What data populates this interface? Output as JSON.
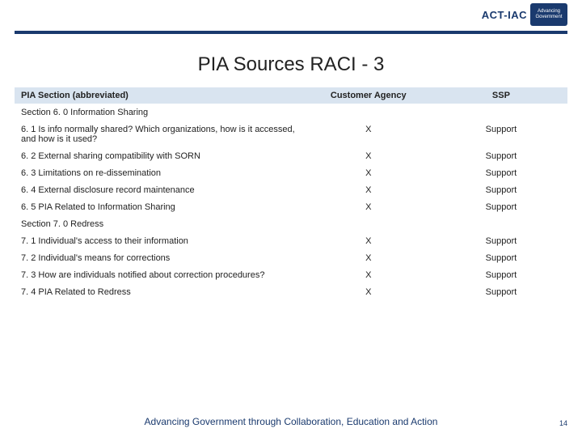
{
  "brand": {
    "name": "ACT-IAC",
    "badge_text": "Advancing Government"
  },
  "title": "PIA Sources RACI - 3",
  "table": {
    "headers": {
      "section": "PIA Section (abbreviated)",
      "customer": "Customer Agency",
      "ssp": "SSP"
    },
    "rows": [
      {
        "type": "section",
        "label": "Section 6. 0 Information Sharing"
      },
      {
        "type": "data",
        "label": "6. 1 Is info normally shared? Which organizations, how is it accessed, and how is it used?",
        "customer": "X",
        "ssp": "Support"
      },
      {
        "type": "data",
        "label": "6. 2 External sharing compatibility with SORN",
        "customer": "X",
        "ssp": "Support"
      },
      {
        "type": "data",
        "label": "6. 3 Limitations on re-dissemination",
        "customer": "X",
        "ssp": "Support"
      },
      {
        "type": "data",
        "label": "6. 4 External disclosure record maintenance",
        "customer": "X",
        "ssp": "Support"
      },
      {
        "type": "data",
        "label": "6. 5 PIA Related to Information Sharing",
        "customer": "X",
        "ssp": "Support"
      },
      {
        "type": "section",
        "label": "Section 7. 0 Redress"
      },
      {
        "type": "data",
        "label": "7. 1 Individual's access to their information",
        "customer": "X",
        "ssp": "Support"
      },
      {
        "type": "data",
        "label": "7. 2 Individual's means for corrections",
        "customer": "X",
        "ssp": "Support"
      },
      {
        "type": "data",
        "label": "7. 3 How are individuals notified about correction procedures?",
        "customer": "X",
        "ssp": "Support"
      },
      {
        "type": "data",
        "label": "7. 4 PIA Related to Redress",
        "customer": "X",
        "ssp": "Support"
      }
    ]
  },
  "footer": "Advancing Government through Collaboration, Education and Action",
  "page_number": "14",
  "colors": {
    "header_bg": "#d9e4f0",
    "rule": "#1a3a6e",
    "brand": "#1a3a6e",
    "text": "#222222",
    "footer_text": "#1a3a6e"
  }
}
